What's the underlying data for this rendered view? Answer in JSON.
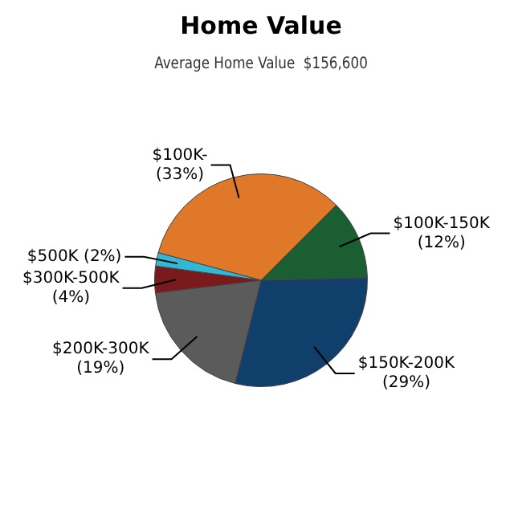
{
  "chart_data": {
    "type": "pie",
    "title": "Home Value",
    "subtitle": "Average Home Value  $156,600",
    "categories": [
      "$100K-",
      "$100K-150K",
      "$150K-200K",
      "$200K-300K",
      "$300K-500K",
      "$500K"
    ],
    "values": [
      33,
      12,
      29,
      19,
      4,
      2
    ],
    "value_labels": [
      "(33%)",
      "(12%)",
      "(29%)",
      "(19%)",
      "(4%)",
      "(2%)"
    ],
    "colors": [
      "#e0782a",
      "#1b5e32",
      "#103f6c",
      "#5b5b5b",
      "#7b1a1c",
      "#32b8d4"
    ],
    "legend": false
  }
}
